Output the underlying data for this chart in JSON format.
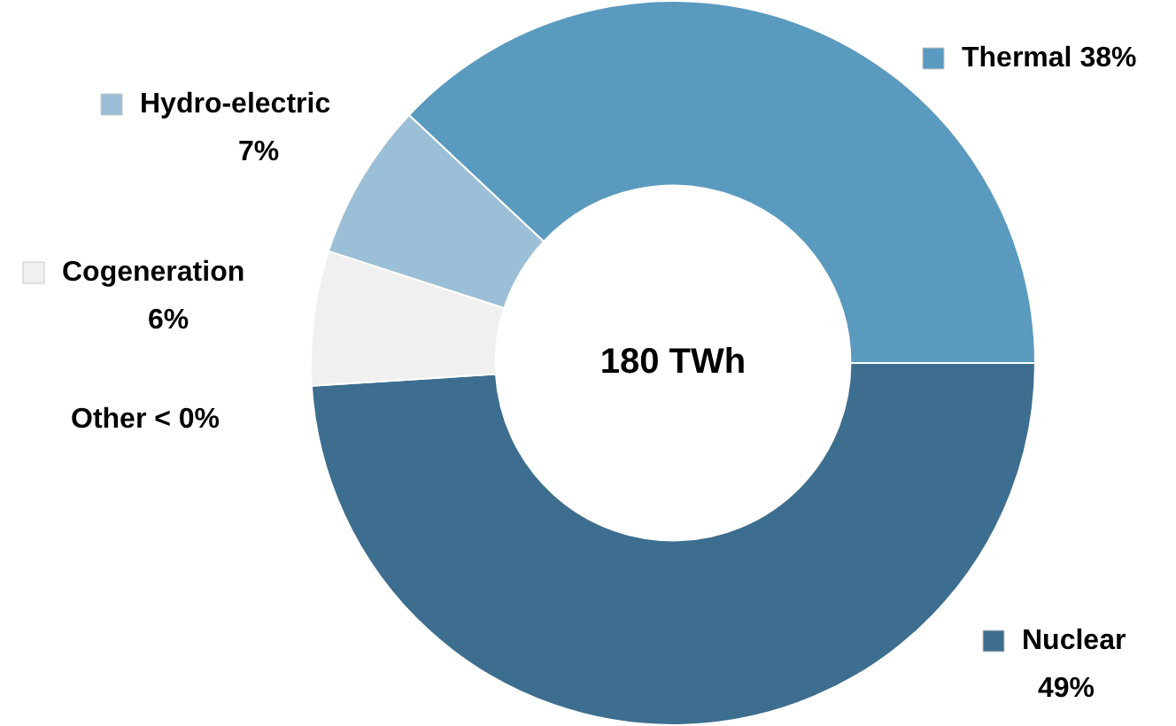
{
  "chart_data": {
    "type": "donut",
    "categories": [
      "Thermal",
      "Nuclear",
      "Other",
      "Cogeneration",
      "Hydro-electric"
    ],
    "values": [
      38,
      49,
      0,
      6,
      7
    ],
    "value_labels": [
      "38%",
      "49%",
      "< 0%",
      "6%",
      "7%"
    ],
    "colors": [
      "#5b9abf",
      "#3d6e8f",
      "#bfbfbf",
      "#f0f0f0",
      "#9bbfd6"
    ],
    "legend": "left",
    "annotations": [
      "180 TWh"
    ]
  }
}
